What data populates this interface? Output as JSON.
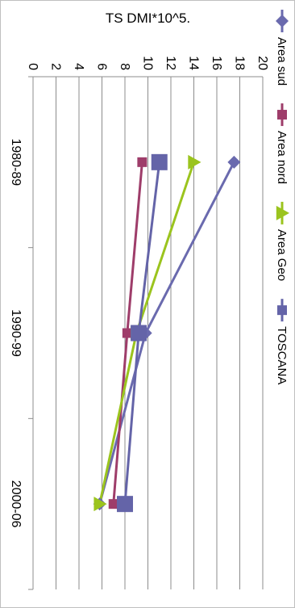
{
  "chart_data": {
    "type": "line",
    "title": "",
    "xlabel": "",
    "ylabel": "TS DMI*10^5",
    "ylabel_display": "TS DMI*10^5.",
    "categories": [
      "1980-89",
      "1990-99",
      "2000-06"
    ],
    "ylim": [
      0,
      20
    ],
    "ytick_step": 2,
    "yticks": [
      "0",
      "2",
      "4",
      "6",
      "8",
      "10",
      "12",
      "14",
      "16",
      "18",
      "20"
    ],
    "grid": true,
    "legend_position": "top",
    "orientation": "rotated 90° clockwise",
    "series": [
      {
        "name": "Area sud",
        "values": [
          17.5,
          9.8,
          5.8
        ],
        "color": "#6A6AAE",
        "marker": "diamond"
      },
      {
        "name": "Area nord",
        "values": [
          9.5,
          8.2,
          7.0
        ],
        "color": "#9E3D6A",
        "marker": "square"
      },
      {
        "name": "Area Geo",
        "values": [
          14.0,
          9.0,
          5.8
        ],
        "color": "#9BC41E",
        "marker": "triangle"
      },
      {
        "name": "TOSCANA",
        "values": [
          11.0,
          9.2,
          8.0
        ],
        "color": "#6464A8",
        "marker": "big-square"
      }
    ]
  }
}
